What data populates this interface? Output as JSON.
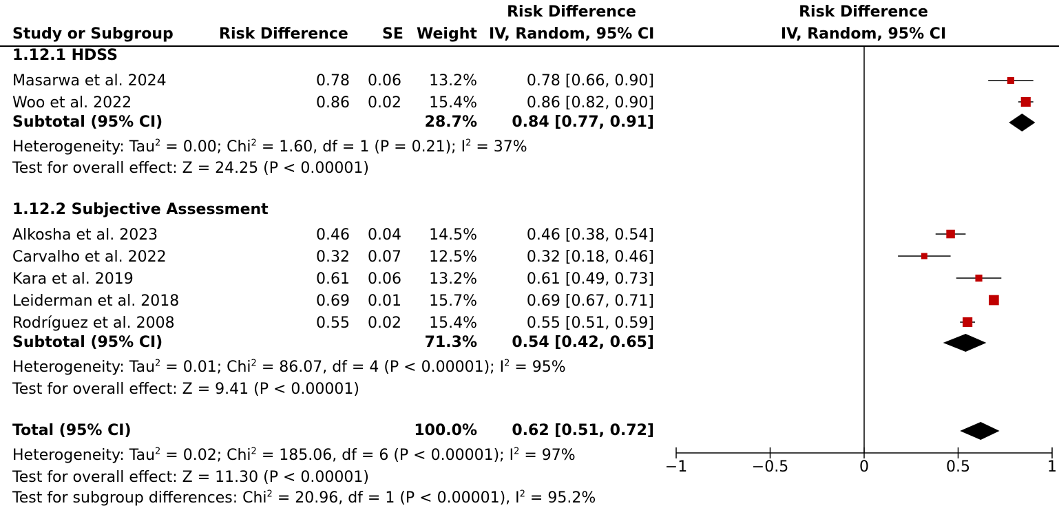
{
  "headers": {
    "study": "Study or Subgroup",
    "rd": "Risk Difference",
    "se": "SE",
    "weight": "Weight",
    "ci_top": "Risk Difference",
    "ci_bottom": "IV, Random, 95% CI",
    "plot_top": "Risk Difference",
    "plot_bottom": "IV, Random, 95% CI"
  },
  "groups": [
    {
      "title": "1.12.1 HDSS",
      "studies": [
        {
          "name": "Masarwa et al. 2024",
          "rd": "0.78",
          "se": "0.06",
          "weight": "13.2%",
          "ci": "0.78 [0.66, 0.90]"
        },
        {
          "name": "Woo et al. 2022",
          "rd": "0.86",
          "se": "0.02",
          "weight": "15.4%",
          "ci": "0.86 [0.82, 0.90]"
        }
      ],
      "subtotal": {
        "label": "Subtotal (95% CI)",
        "weight": "28.7%",
        "ci": "0.84 [0.77, 0.91]"
      },
      "heterogeneity": {
        "a": "Heterogeneity: Tau",
        "b": " = 0.00; Chi",
        "c": " = 1.60, df = 1 (P = 0.21); I",
        "d": " = 37%"
      },
      "overall": "Test for overall effect: Z = 24.25 (P < 0.00001)"
    },
    {
      "title": "1.12.2 Subjective Assessment",
      "studies": [
        {
          "name": "Alkosha et al. 2023",
          "rd": "0.46",
          "se": "0.04",
          "weight": "14.5%",
          "ci": "0.46 [0.38, 0.54]"
        },
        {
          "name": "Carvalho et al. 2022",
          "rd": "0.32",
          "se": "0.07",
          "weight": "12.5%",
          "ci": "0.32 [0.18, 0.46]"
        },
        {
          "name": "Kara et al. 2019",
          "rd": "0.61",
          "se": "0.06",
          "weight": "13.2%",
          "ci": "0.61 [0.49, 0.73]"
        },
        {
          "name": "Leiderman et al. 2018",
          "rd": "0.69",
          "se": "0.01",
          "weight": "15.7%",
          "ci": "0.69 [0.67, 0.71]"
        },
        {
          "name": "Rodríguez et al. 2008",
          "rd": "0.55",
          "se": "0.02",
          "weight": "15.4%",
          "ci": "0.55 [0.51, 0.59]"
        }
      ],
      "subtotal": {
        "label": "Subtotal (95% CI)",
        "weight": "71.3%",
        "ci": "0.54 [0.42, 0.65]"
      },
      "heterogeneity": {
        "a": "Heterogeneity: Tau",
        "b": " = 0.01; Chi",
        "c": " = 86.07, df = 4 (P < 0.00001); I",
        "d": " = 95%"
      },
      "overall": "Test for overall effect: Z = 9.41 (P < 0.00001)"
    }
  ],
  "total": {
    "label": "Total (95% CI)",
    "weight": "100.0%",
    "ci": "0.62 [0.51, 0.72]"
  },
  "total_heterogeneity": {
    "a": "Heterogeneity: Tau",
    "b": " = 0.02; Chi",
    "c": " = 185.06, df = 6 (P < 0.00001); I",
    "d": " = 97%"
  },
  "total_overall": "Test for overall effect: Z = 11.30 (P < 0.00001)",
  "subgroup_diff": {
    "a": "Test for subgroup differences: Chi",
    "b": " = 20.96, df = 1 (P < 0.00001), I",
    "c": " = 95.2%"
  },
  "sup2": "2",
  "colors": {
    "study_marker": "#c00000",
    "diamond": "#000000",
    "line": "#000000"
  },
  "chart_data": {
    "type": "forest",
    "x_range": [
      -1,
      1
    ],
    "x_ticks": [
      "-1",
      "-0.5",
      "0",
      "0.5",
      "1"
    ],
    "x_tick_values": [
      -1,
      -0.5,
      0,
      0.5,
      1
    ],
    "studies": [
      {
        "name": "Masarwa et al. 2024",
        "est": 0.78,
        "lo": 0.66,
        "hi": 0.9,
        "weight": 13.2
      },
      {
        "name": "Woo et al. 2022",
        "est": 0.86,
        "lo": 0.82,
        "hi": 0.9,
        "weight": 15.4
      },
      {
        "name": "Alkosha et al. 2023",
        "est": 0.46,
        "lo": 0.38,
        "hi": 0.54,
        "weight": 14.5
      },
      {
        "name": "Carvalho et al. 2022",
        "est": 0.32,
        "lo": 0.18,
        "hi": 0.46,
        "weight": 12.5
      },
      {
        "name": "Kara et al. 2019",
        "est": 0.61,
        "lo": 0.49,
        "hi": 0.73,
        "weight": 13.2
      },
      {
        "name": "Leiderman et al. 2018",
        "est": 0.69,
        "lo": 0.67,
        "hi": 0.71,
        "weight": 15.7
      },
      {
        "name": "Rodríguez et al. 2008",
        "est": 0.55,
        "lo": 0.51,
        "hi": 0.59,
        "weight": 15.4
      }
    ],
    "diamonds": [
      {
        "name": "Subtotal 1.12.1",
        "est": 0.84,
        "lo": 0.77,
        "hi": 0.91
      },
      {
        "name": "Subtotal 1.12.2",
        "est": 0.54,
        "lo": 0.42,
        "hi": 0.65
      },
      {
        "name": "Total",
        "est": 0.62,
        "lo": 0.51,
        "hi": 0.72
      }
    ]
  }
}
